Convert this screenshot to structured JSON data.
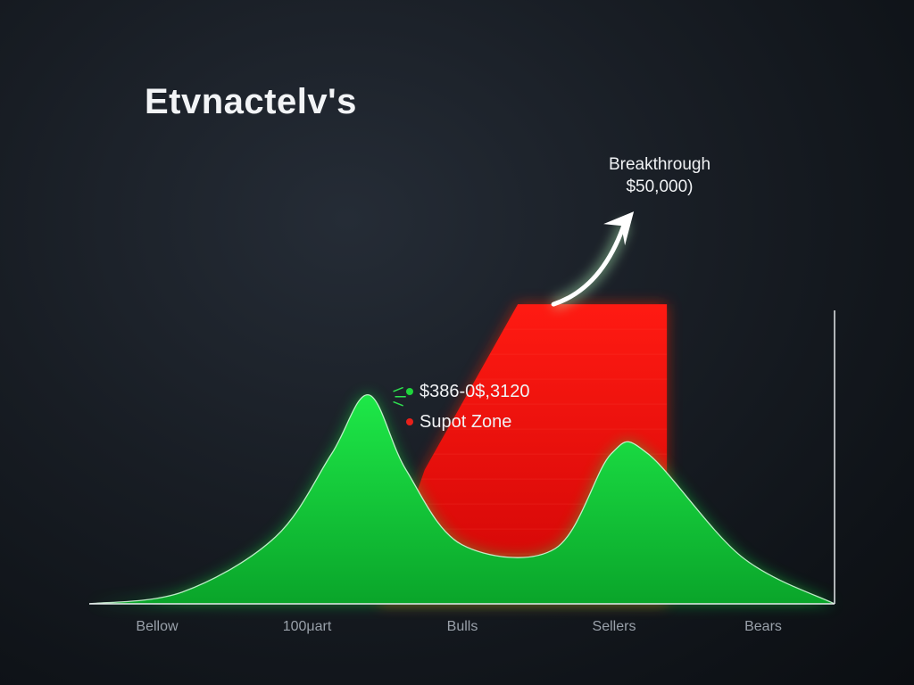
{
  "chart_data": {
    "type": "area",
    "title": "Etvnactelv's",
    "categories": [
      "Bellow",
      "100μart",
      "Bulls",
      "Sellers",
      "Bears"
    ],
    "series": [
      {
        "name": "$386-0$,3120",
        "color": "#16d23a",
        "x": [
          0.0,
          0.5,
          1.0,
          1.3,
          1.5,
          1.7,
          2.0,
          2.5,
          2.8,
          3.0,
          3.5,
          4.0
        ],
        "y": [
          0,
          3,
          17,
          38,
          53,
          34,
          15,
          14,
          38,
          38,
          12,
          0
        ]
      },
      {
        "name": "Supot Zone",
        "color": "#f20a0a",
        "x": [
          1.8,
          2.3,
          3.1,
          3.1
        ],
        "y": [
          34,
          76,
          76,
          0
        ]
      }
    ],
    "annotation": {
      "line1": "Breakthrough",
      "line2": "$50,000)"
    },
    "ylim": [
      0,
      100
    ],
    "grid": false,
    "legend_position": "center"
  }
}
